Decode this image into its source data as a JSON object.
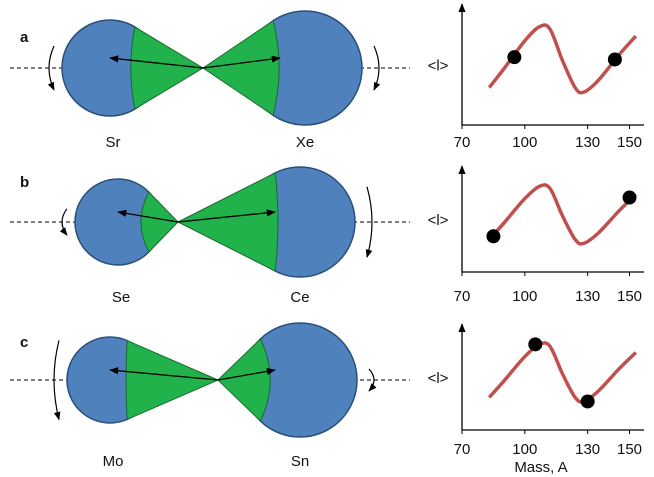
{
  "chart_data": [
    {
      "type": "line",
      "title": "a",
      "annotations": [
        "Sr",
        "Xe"
      ],
      "ylabel": "<l>",
      "x": [
        83,
        90,
        100,
        107,
        112,
        118,
        124,
        128,
        135,
        145,
        153
      ],
      "values": [
        3.2,
        4.8,
        7.2,
        8.4,
        8.2,
        5.5,
        3.2,
        2.8,
        3.8,
        6.0,
        7.6
      ],
      "color": "#c0504d",
      "points": {
        "x": [
          95,
          143
        ],
        "values": [
          5.8,
          5.6
        ],
        "color": "#000000"
      },
      "xlim": [
        70,
        155
      ],
      "ylim": [
        0,
        10
      ],
      "xticks": [
        70,
        100,
        130,
        150
      ]
    },
    {
      "type": "line",
      "title": "b",
      "annotations": [
        "Se",
        "Ce"
      ],
      "ylabel": "<l>",
      "x": [
        83,
        90,
        100,
        107,
        112,
        118,
        124,
        128,
        135,
        145,
        153
      ],
      "values": [
        3.2,
        4.8,
        7.2,
        8.4,
        8.2,
        5.5,
        3.2,
        2.8,
        3.8,
        6.0,
        7.6
      ],
      "color": "#c0504d",
      "points": {
        "x": [
          85,
          150
        ],
        "values": [
          3.5,
          7.3
        ],
        "color": "#000000"
      },
      "xlim": [
        70,
        155
      ],
      "ylim": [
        0,
        10
      ],
      "xticks": [
        70,
        100,
        130,
        150
      ]
    },
    {
      "type": "line",
      "title": "c",
      "annotations": [
        "Mo",
        "Sn"
      ],
      "ylabel": "<l>",
      "xlabel": "Mass, A",
      "x": [
        83,
        90,
        100,
        107,
        112,
        118,
        124,
        128,
        135,
        145,
        153
      ],
      "values": [
        3.2,
        4.8,
        7.2,
        8.4,
        8.2,
        5.5,
        3.2,
        2.8,
        3.8,
        6.0,
        7.6
      ],
      "color": "#c0504d",
      "points": {
        "x": [
          105,
          130
        ],
        "values": [
          8.4,
          2.8
        ],
        "color": "#000000"
      },
      "xlim": [
        70,
        155
      ],
      "ylim": [
        0,
        10
      ],
      "xticks": [
        70,
        100,
        130,
        150
      ]
    }
  ]
}
